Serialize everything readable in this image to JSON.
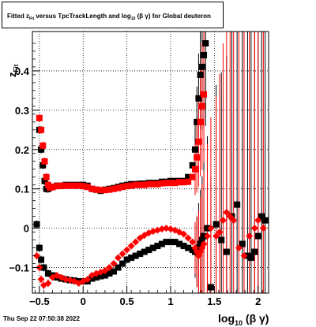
{
  "title": {
    "prefix": "Fitted  z",
    "sub1": "Fit",
    "middle": "  versus TpcTrackLength and log",
    "sub2": "10",
    "suffix": " (β  γ) for Global deuteron"
  },
  "footer": "Thu Sep 22 07:50:38 2022",
  "chart_data": {
    "type": "scatter",
    "xlim": [
      -0.58,
      2.12
    ],
    "ylim": [
      -0.165,
      0.5
    ],
    "xticks": [
      -0.5,
      0,
      0.5,
      1,
      1.5,
      2
    ],
    "xtick_labels": [
      "−0.5",
      "0",
      "0.5",
      "1",
      "1.5",
      "2"
    ],
    "yticks": [
      -0.1,
      0,
      0.1,
      0.2,
      0.3,
      0.4
    ],
    "ytick_labels": [
      "−0.1",
      "0",
      "0.1",
      "0.2",
      "0.3",
      "0.4"
    ],
    "xlabel": {
      "main": "log",
      "sub": "10",
      "tail": " (β γ)"
    },
    "ylabel": {
      "main": "z",
      "sub": "Fit"
    },
    "grid": true,
    "series": [
      {
        "color": "#000000",
        "marker": "square",
        "x": [
          -0.5,
          -0.48,
          -0.46,
          -0.44,
          -0.42,
          -0.4,
          -0.38,
          -0.35,
          -0.3,
          -0.25,
          -0.2,
          -0.15,
          -0.1,
          -0.05,
          0,
          0.05,
          0.1,
          0.15,
          0.2,
          0.25,
          0.3,
          0.35,
          0.4,
          0.45,
          0.5,
          0.55,
          0.6,
          0.65,
          0.7,
          0.75,
          0.8,
          0.85,
          0.9,
          0.95,
          1.0,
          1.05,
          1.1,
          1.15,
          1.2,
          1.25,
          1.28,
          1.3,
          1.32,
          1.34,
          1.36,
          1.38,
          1.4
        ],
        "y": [
          0.25,
          0.2,
          0.16,
          0.12,
          0.1,
          0.1,
          0.105,
          0.105,
          0.108,
          0.108,
          0.11,
          0.11,
          0.11,
          0.11,
          0.11,
          0.108,
          0.1,
          0.098,
          0.095,
          0.098,
          0.1,
          0.102,
          0.105,
          0.108,
          0.11,
          0.112,
          0.112,
          0.113,
          0.113,
          0.115,
          0.115,
          0.115,
          0.118,
          0.118,
          0.12,
          0.12,
          0.12,
          0.12,
          0.13,
          0.16,
          0.2,
          0.27,
          0.33,
          0.39,
          0.41,
          0.44,
          0.47
        ]
      },
      {
        "color": "#ff0000",
        "marker": "square",
        "x": [
          -0.5,
          -0.48,
          -0.46,
          -0.44,
          -0.42,
          -0.4,
          -0.38,
          -0.35,
          -0.3,
          -0.25,
          -0.2,
          -0.15,
          -0.1,
          -0.05,
          0,
          0.05,
          0.1,
          0.15,
          0.2,
          0.25,
          0.3,
          0.35,
          0.4,
          0.45,
          0.5,
          0.55,
          0.6,
          0.65,
          0.7,
          0.75,
          0.8,
          0.85,
          0.9,
          0.95,
          1.0,
          1.05,
          1.1,
          1.15,
          1.2,
          1.25,
          1.28,
          1.3,
          1.32,
          1.34,
          1.36,
          1.38
        ],
        "y": [
          0.28,
          0.25,
          0.21,
          0.17,
          0.13,
          0.11,
          0.103,
          0.105,
          0.107,
          0.108,
          0.108,
          0.108,
          0.108,
          0.108,
          0.107,
          0.105,
          0.1,
          0.098,
          0.097,
          0.097,
          0.098,
          0.1,
          0.102,
          0.105,
          0.107,
          0.108,
          0.11,
          0.11,
          0.11,
          0.112,
          0.112,
          0.112,
          0.114,
          0.115,
          0.115,
          0.115,
          0.117,
          0.117,
          0.118,
          0.13,
          0.15,
          0.18,
          0.22,
          0.27,
          0.31,
          0.34
        ]
      },
      {
        "color": "#000000",
        "marker": "square",
        "x": [
          -0.53,
          -0.5,
          -0.48,
          -0.45,
          -0.4,
          -0.35,
          -0.3,
          -0.25,
          -0.2,
          -0.15,
          -0.1,
          -0.05,
          0,
          0.05,
          0.1,
          0.15,
          0.2,
          0.25,
          0.3,
          0.35,
          0.4,
          0.45,
          0.5,
          0.55,
          0.6,
          0.65,
          0.7,
          0.75,
          0.8,
          0.85,
          0.9,
          0.95,
          1.0,
          1.05,
          1.1,
          1.15,
          1.2,
          1.25,
          1.28,
          1.3,
          1.32,
          1.34,
          1.36,
          1.38,
          1.42,
          1.46,
          1.52,
          1.58,
          1.64,
          1.7,
          1.76,
          1.82,
          1.88,
          1.92,
          1.96,
          2.0,
          2.04,
          2.08
        ],
        "y": [
          0.01,
          -0.05,
          -0.08,
          -0.1,
          -0.115,
          -0.12,
          -0.125,
          -0.128,
          -0.13,
          -0.132,
          -0.133,
          -0.135,
          -0.135,
          -0.135,
          -0.128,
          -0.125,
          -0.122,
          -0.12,
          -0.115,
          -0.11,
          -0.1,
          -0.09,
          -0.08,
          -0.075,
          -0.07,
          -0.065,
          -0.06,
          -0.055,
          -0.05,
          -0.045,
          -0.04,
          -0.035,
          -0.035,
          -0.035,
          -0.04,
          -0.045,
          -0.05,
          -0.055,
          -0.06,
          -0.06,
          -0.05,
          -0.04,
          -0.03,
          -0.02,
          0.0,
          -0.15,
          0.01,
          -0.03,
          -0.06,
          0.03,
          0.06,
          -0.04,
          -0.07,
          -0.075,
          -0.06,
          -0.02,
          0.03,
          0.02
        ]
      },
      {
        "color": "#ff0000",
        "marker": "diamond",
        "x": [
          -0.53,
          -0.5,
          -0.48,
          -0.45,
          -0.4,
          -0.35,
          -0.3,
          -0.25,
          -0.2,
          -0.15,
          -0.1,
          -0.05,
          0,
          0.05,
          0.1,
          0.15,
          0.2,
          0.25,
          0.3,
          0.35,
          0.4,
          0.45,
          0.5,
          0.55,
          0.6,
          0.65,
          0.7,
          0.75,
          0.8,
          0.85,
          0.9,
          0.95,
          1.0,
          1.05,
          1.1,
          1.15,
          1.2,
          1.25,
          1.28,
          1.3,
          1.32,
          1.34,
          1.36,
          1.38,
          1.42,
          1.46,
          1.52,
          1.56,
          1.6,
          1.64,
          1.68,
          1.72,
          1.78,
          1.84,
          1.9,
          1.96,
          2.0,
          2.06
        ],
        "y": [
          -0.07,
          -0.1,
          -0.13,
          -0.145,
          -0.14,
          -0.125,
          -0.12,
          -0.125,
          -0.13,
          -0.132,
          -0.135,
          -0.14,
          -0.135,
          -0.13,
          -0.12,
          -0.115,
          -0.112,
          -0.108,
          -0.1,
          -0.09,
          -0.075,
          -0.065,
          -0.055,
          -0.045,
          -0.035,
          -0.025,
          -0.018,
          -0.012,
          -0.008,
          -0.005,
          -0.002,
          0.0,
          -0.002,
          -0.005,
          -0.01,
          -0.015,
          -0.025,
          -0.035,
          -0.05,
          -0.06,
          -0.07,
          -0.06,
          -0.05,
          -0.04,
          -0.02,
          0.0,
          -0.02,
          -0.01,
          0.02,
          0.04,
          0.03,
          0.02,
          -0.05,
          -0.07,
          -0.02,
          0.0,
          0.02,
          0.0
        ]
      }
    ]
  }
}
